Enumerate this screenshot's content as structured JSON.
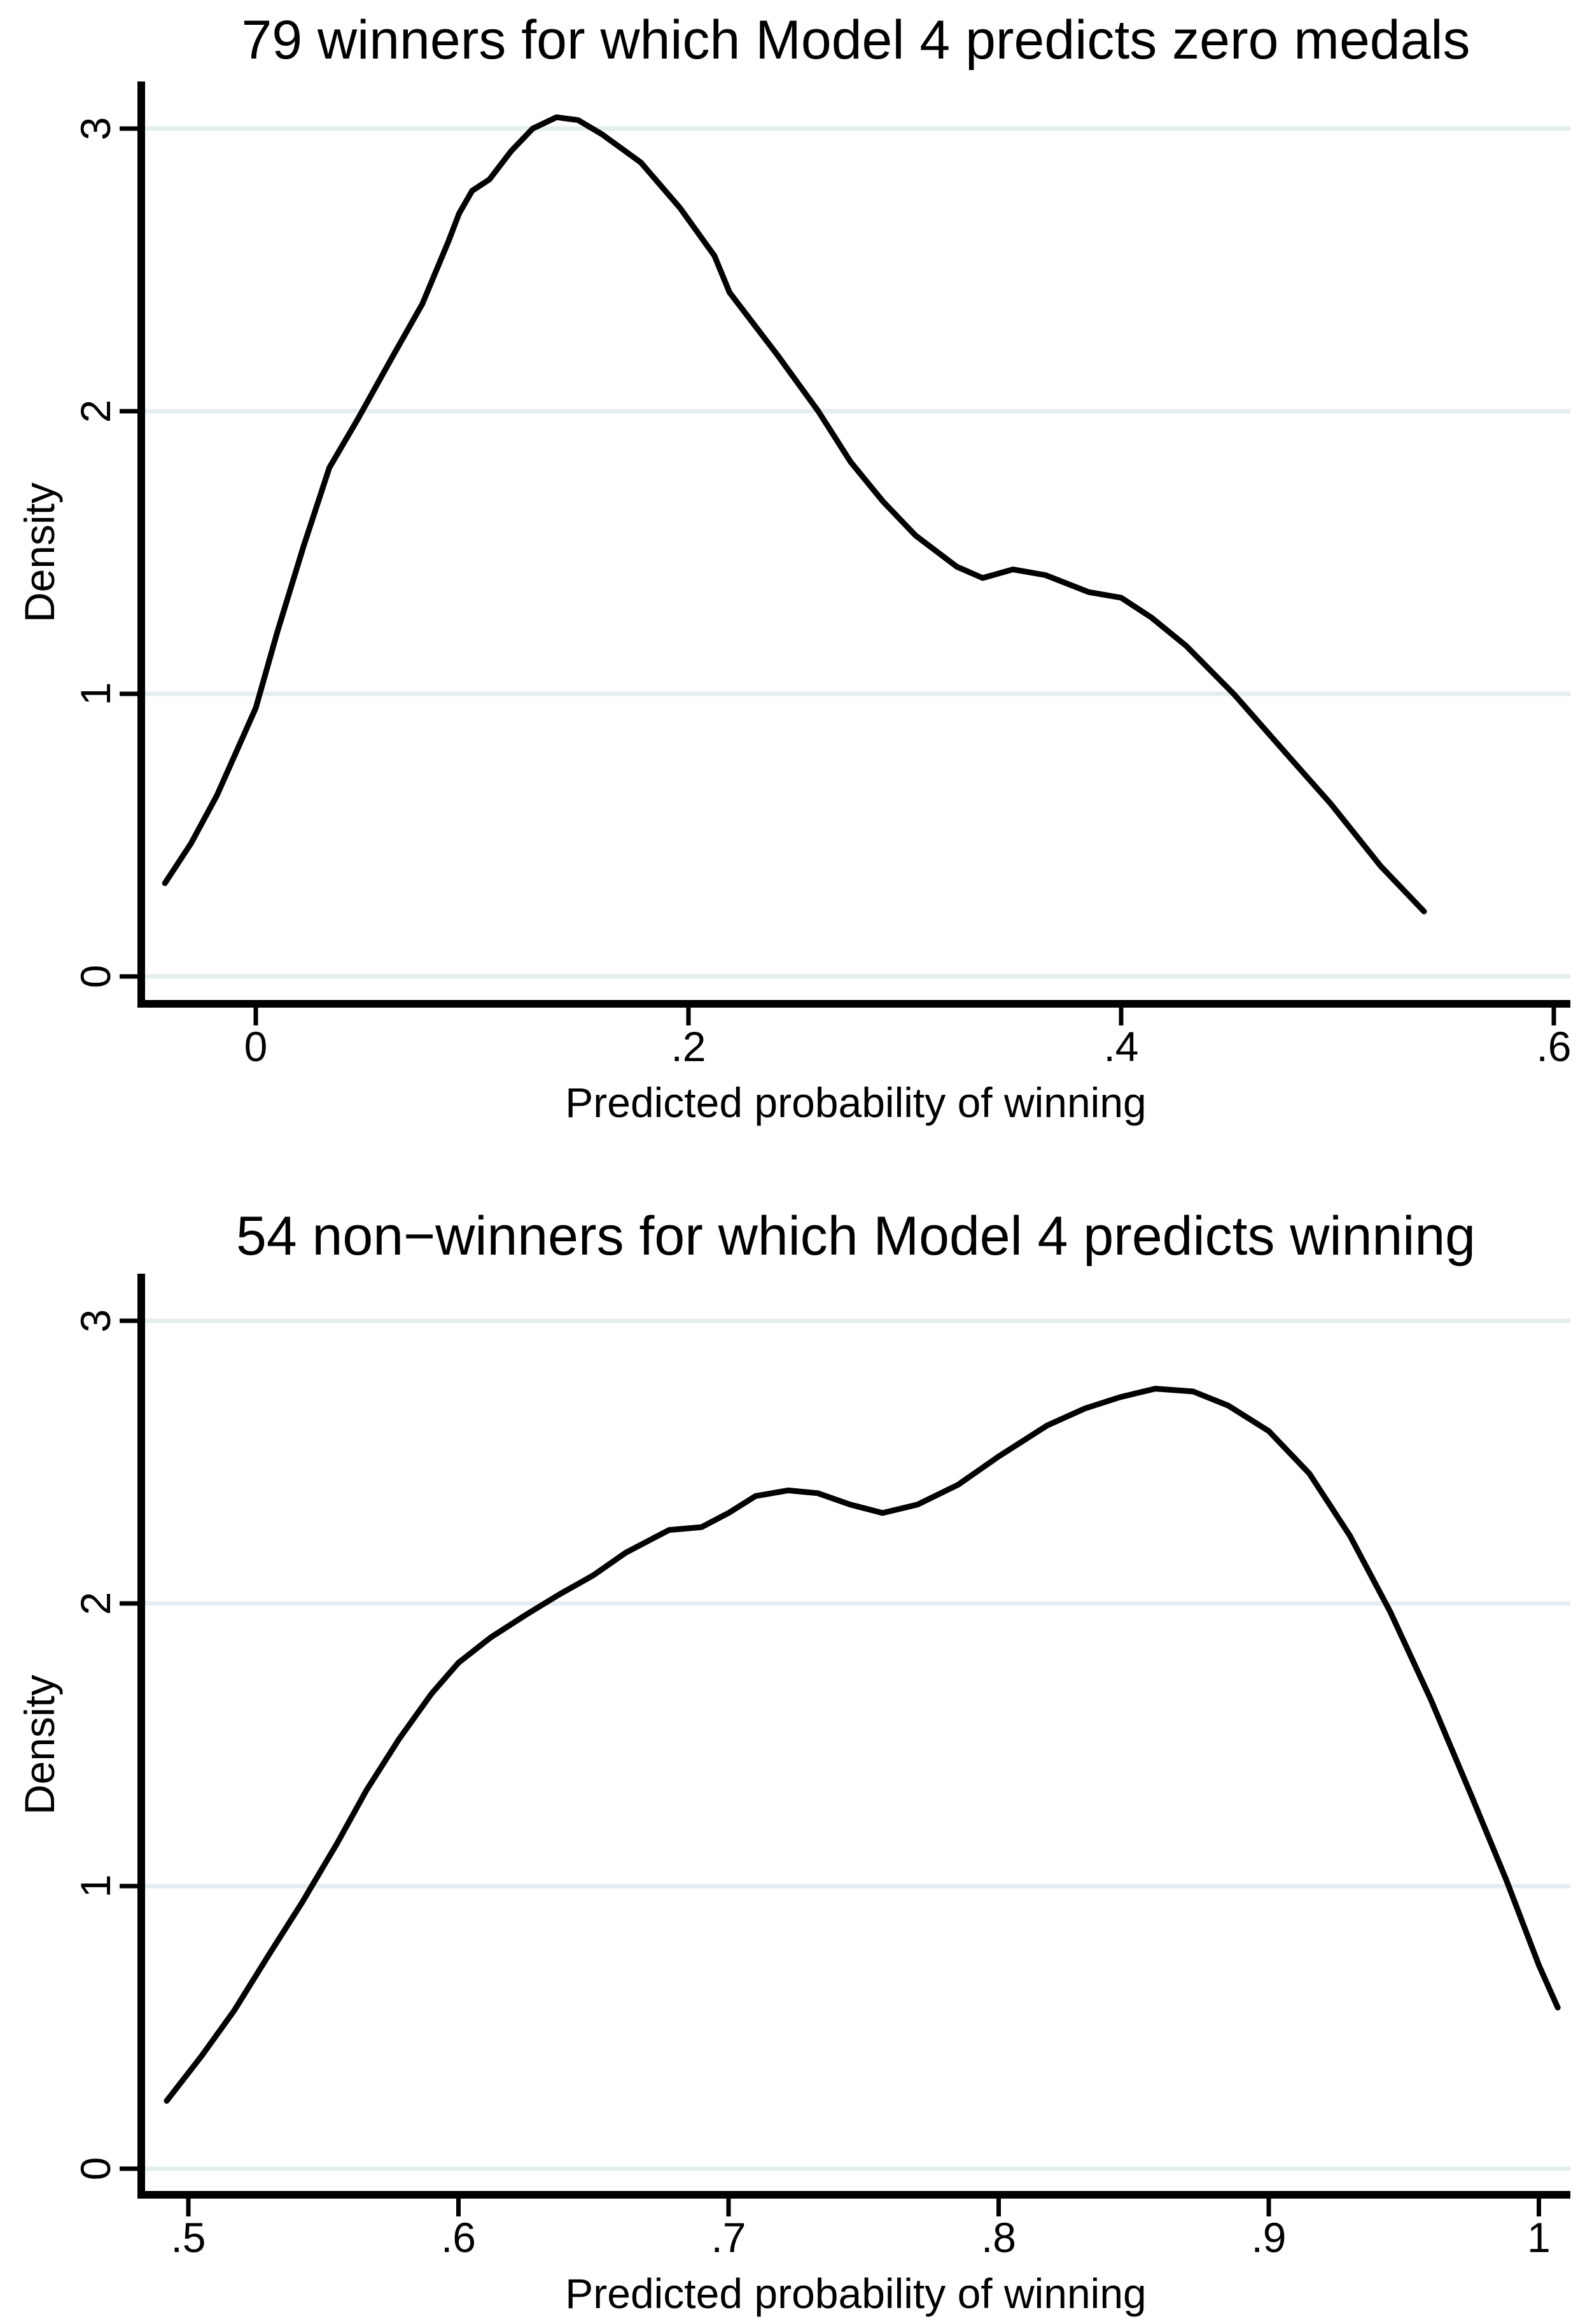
{
  "styles": {
    "background": "#ffffff",
    "curve_color": "#000000",
    "axis_color": "#000000",
    "grid_color": "#e4eef0",
    "text_color": "#000000"
  },
  "chart_data": [
    {
      "type": "line",
      "title": "79 winners for which Model 4 predicts zero medals",
      "xlabel": "Predicted probability of winning",
      "ylabel": "Density",
      "xlim": [
        -0.053,
        0.608
      ],
      "ylim": [
        0,
        3.17
      ],
      "grid": "on",
      "legend": "none",
      "xticks": {
        "values": [
          0,
          0.2,
          0.4,
          0.6
        ],
        "labels": [
          "0",
          ".2",
          ".4",
          ".6"
        ]
      },
      "yticks": {
        "values": [
          0,
          1,
          2,
          3
        ],
        "labels": [
          "0",
          "1",
          "2",
          "3"
        ]
      },
      "series": [
        {
          "name": "density",
          "x": [
            -0.042,
            -0.03,
            -0.018,
            0.0,
            0.01,
            0.022,
            0.034,
            0.047,
            0.063,
            0.077,
            0.089,
            0.094,
            0.1,
            0.108,
            0.118,
            0.128,
            0.139,
            0.149,
            0.16,
            0.178,
            0.196,
            0.212,
            0.219,
            0.23,
            0.241,
            0.26,
            0.275,
            0.29,
            0.305,
            0.324,
            0.336,
            0.35,
            0.365,
            0.385,
            0.4,
            0.414,
            0.43,
            0.452,
            0.475,
            0.497,
            0.52,
            0.54
          ],
          "y": [
            0.33,
            0.47,
            0.64,
            0.95,
            1.22,
            1.52,
            1.8,
            1.97,
            2.19,
            2.38,
            2.6,
            2.7,
            2.78,
            2.82,
            2.92,
            3.0,
            3.04,
            3.03,
            2.98,
            2.88,
            2.72,
            2.55,
            2.42,
            2.31,
            2.2,
            2.0,
            1.82,
            1.68,
            1.56,
            1.45,
            1.41,
            1.44,
            1.42,
            1.36,
            1.34,
            1.27,
            1.17,
            1.0,
            0.8,
            0.61,
            0.39,
            0.23
          ]
        }
      ]
    },
    {
      "type": "line",
      "title": "54 non−winners for which Model 4 predicts winning",
      "xlabel": "Predicted probability of winning",
      "ylabel": "Density",
      "xlim": [
        0.483,
        1.012
      ],
      "ylim": [
        0,
        3.17
      ],
      "grid": "on",
      "legend": "none",
      "xticks": {
        "values": [
          0.5,
          0.6,
          0.7,
          0.8,
          0.9,
          1.0
        ],
        "labels": [
          ".5",
          ".6",
          ".7",
          ".8",
          ".9",
          "1"
        ]
      },
      "yticks": {
        "values": [
          0,
          1,
          2,
          3
        ],
        "labels": [
          "0",
          "1",
          "2",
          "3"
        ]
      },
      "series": [
        {
          "name": "density",
          "x": [
            0.492,
            0.505,
            0.517,
            0.53,
            0.542,
            0.555,
            0.566,
            0.578,
            0.59,
            0.6,
            0.612,
            0.625,
            0.637,
            0.65,
            0.662,
            0.672,
            0.678,
            0.69,
            0.7,
            0.71,
            0.722,
            0.733,
            0.745,
            0.757,
            0.77,
            0.785,
            0.8,
            0.818,
            0.832,
            0.845,
            0.858,
            0.872,
            0.885,
            0.9,
            0.915,
            0.93,
            0.945,
            0.96,
            0.975,
            0.988,
            1.0,
            1.007
          ],
          "y": [
            0.24,
            0.4,
            0.56,
            0.76,
            0.94,
            1.15,
            1.34,
            1.52,
            1.68,
            1.79,
            1.88,
            1.96,
            2.03,
            2.1,
            2.18,
            2.23,
            2.26,
            2.27,
            2.32,
            2.38,
            2.4,
            2.39,
            2.35,
            2.32,
            2.35,
            2.42,
            2.52,
            2.63,
            2.69,
            2.73,
            2.76,
            2.75,
            2.7,
            2.61,
            2.46,
            2.24,
            1.97,
            1.66,
            1.32,
            1.02,
            0.72,
            0.57
          ]
        }
      ]
    }
  ]
}
